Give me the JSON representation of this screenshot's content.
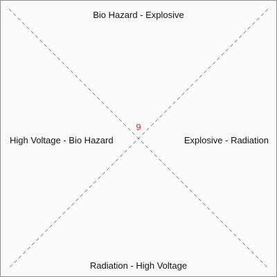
{
  "zones": {
    "top": "Bio Hazard - Explosive",
    "right": "Explosive - Radiation",
    "bottom": "Radiation - High Voltage",
    "left": "High Voltage - Bio Hazard"
  },
  "center_value": "9",
  "colors": {
    "background": "#f9f9f9",
    "border": "#8e8e8e",
    "divider": "#6f6f6f",
    "label": "#111111",
    "center_value": "#e8231e"
  }
}
